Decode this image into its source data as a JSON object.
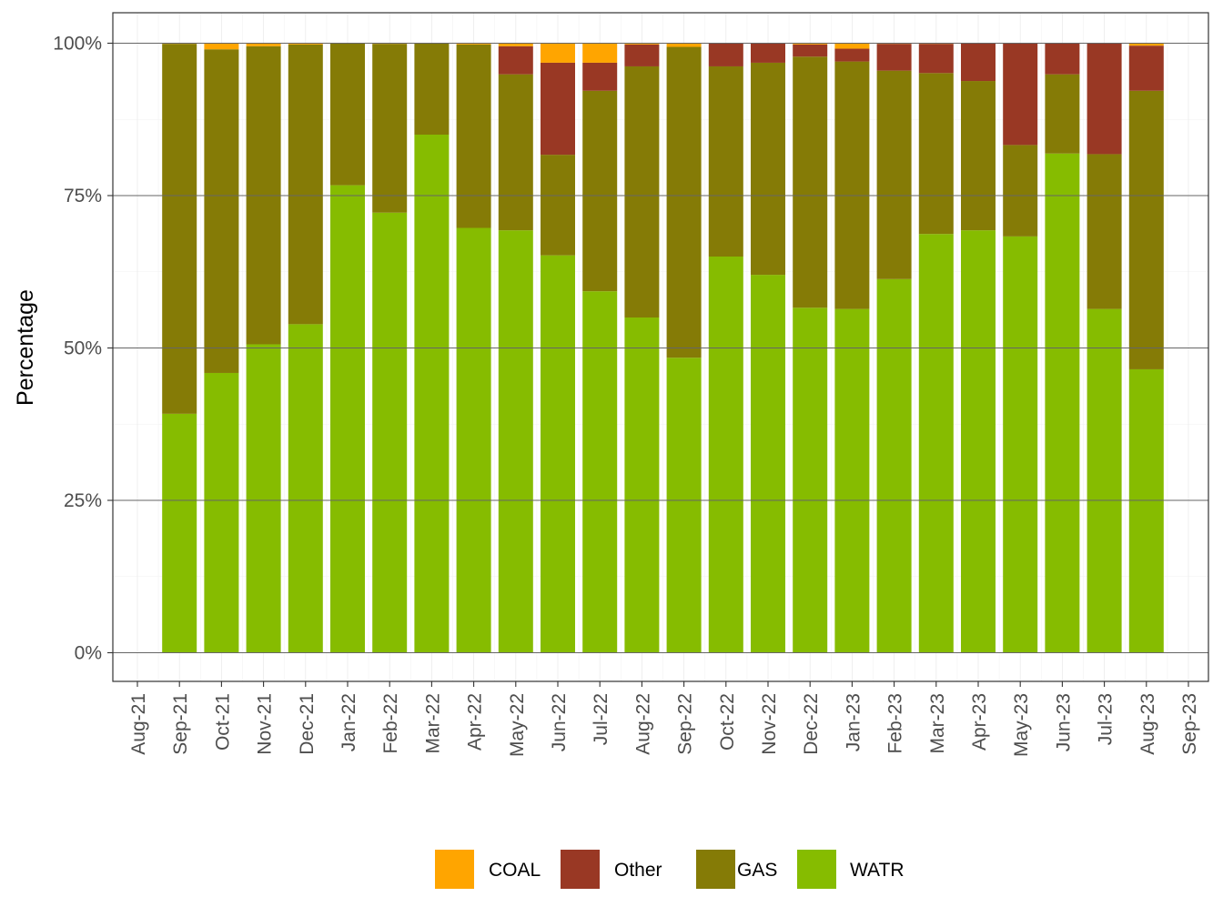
{
  "chart_data": {
    "type": "bar",
    "stacked": true,
    "percent": true,
    "ylabel": "Percentage",
    "xlabel": "",
    "ylim": [
      0,
      1
    ],
    "y_ticks": [
      "0%",
      "25%",
      "50%",
      "75%",
      "100%"
    ],
    "x_axis_labels": [
      "Aug-21",
      "Sep-21",
      "Oct-21",
      "Nov-21",
      "Dec-21",
      "Jan-22",
      "Feb-22",
      "Mar-22",
      "Apr-22",
      "May-22",
      "Jun-22",
      "Jul-22",
      "Aug-22",
      "Sep-22",
      "Oct-22",
      "Nov-22",
      "Dec-22",
      "Jan-23",
      "Feb-23",
      "Mar-23",
      "Apr-23",
      "May-23",
      "Jun-23",
      "Jul-23",
      "Aug-23",
      "Sep-23"
    ],
    "categories": [
      "Sep-21",
      "Oct-21",
      "Nov-21",
      "Dec-21",
      "Jan-22",
      "Feb-22",
      "Mar-22",
      "Apr-22",
      "May-22",
      "Jun-22",
      "Jul-22",
      "Aug-22",
      "Sep-22",
      "Oct-22",
      "Nov-22",
      "Dec-22",
      "Jan-23",
      "Feb-23",
      "Mar-23",
      "Apr-23",
      "May-23",
      "Jun-23",
      "Jul-23",
      "Aug-23"
    ],
    "series": [
      {
        "name": "WATR",
        "color": "#86bc00",
        "values": [
          0.392,
          0.459,
          0.506,
          0.539,
          0.767,
          0.722,
          0.85,
          0.697,
          0.693,
          0.652,
          0.593,
          0.55,
          0.484,
          0.65,
          0.62,
          0.566,
          0.564,
          0.613,
          0.687,
          0.693,
          0.683,
          0.819,
          0.564,
          0.465
        ]
      },
      {
        "name": "GAS",
        "color": "#857b06",
        "values": [
          0.607,
          0.531,
          0.489,
          0.459,
          0.233,
          0.277,
          0.15,
          0.301,
          0.256,
          0.165,
          0.329,
          0.412,
          0.51,
          0.312,
          0.348,
          0.412,
          0.406,
          0.342,
          0.264,
          0.245,
          0.15,
          0.13,
          0.254,
          0.457
        ]
      },
      {
        "name": "Other",
        "color": "#993824",
        "values": [
          0.0,
          0.0,
          0.0,
          0.0,
          0.0,
          0.0,
          0.0,
          0.0,
          0.046,
          0.151,
          0.046,
          0.036,
          0.0,
          0.038,
          0.032,
          0.02,
          0.021,
          0.044,
          0.048,
          0.062,
          0.167,
          0.051,
          0.182,
          0.074
        ]
      },
      {
        "name": "COAL",
        "color": "#ffa500",
        "values": [
          0.001,
          0.01,
          0.005,
          0.002,
          0.0,
          0.001,
          0.0,
          0.002,
          0.005,
          0.032,
          0.032,
          0.002,
          0.006,
          0.0,
          0.0,
          0.002,
          0.009,
          0.001,
          0.001,
          0.0,
          0.0,
          0.0,
          0.0,
          0.004
        ]
      }
    ],
    "legend": {
      "position": "bottom",
      "order": [
        "COAL",
        "Other",
        "GAS",
        "WATR"
      ]
    },
    "grid": true,
    "theme": "bw"
  }
}
